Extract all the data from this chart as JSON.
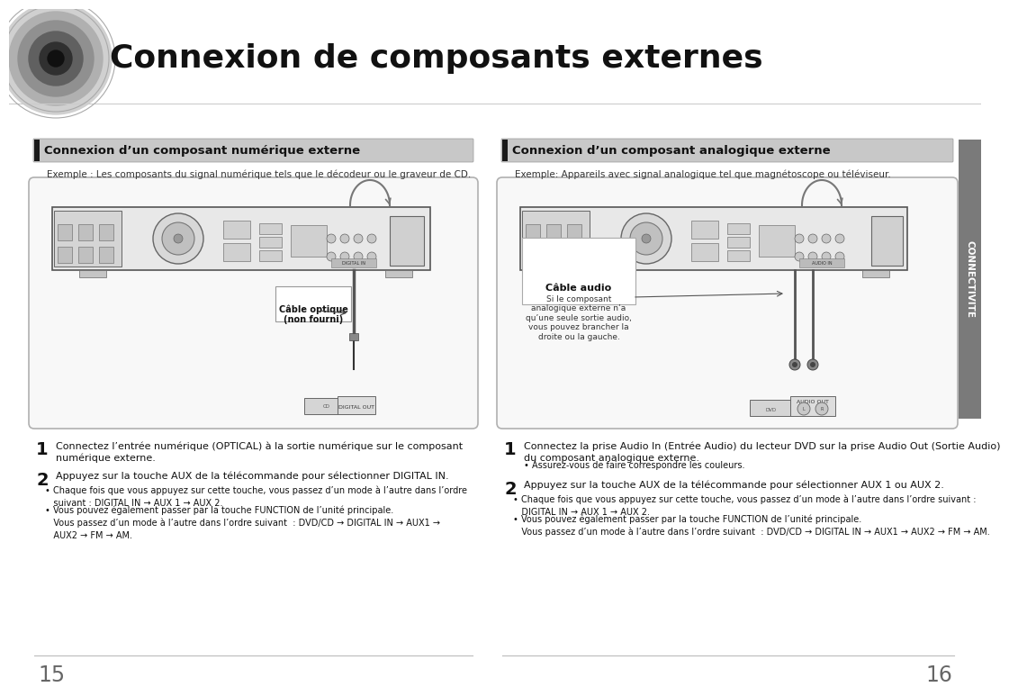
{
  "title": "Connexion de composants externes",
  "bg_color": "#ffffff",
  "page_left": "15",
  "page_right": "16",
  "sidebar_text": "CONNECTIVITE",
  "left_heading": "Connexion d’un composant numérique externe",
  "right_heading": "Connexion d’un composant analogique externe",
  "left_example": "Exemple : Les composants du signal numérique tels que le décodeur ou le graveur de CD.",
  "right_example": "Exemple: Appareils avec signal analogique tel que magnétoscope ou téléviseur.",
  "cable_label_left": "Câble optique\n(non fourni)",
  "cable_label_right": "Câble audio",
  "cable_note_right": "Si le composant\nanalogique externe n’a\nqu’une seule sortie audio,\nvous pouvez brancher la\ndroite ou la gauche.",
  "digital_out": "DIGITAL OUT",
  "audio_out": "AUDIO OUT",
  "left_step1": "Connectez l’entrée numérique (OPTICAL) à la sortie numérique sur le composant\nnumérique externe.",
  "left_step2_pre": "Appuyez sur la touche ",
  "left_step2_bold": "AUX",
  "left_step2_post": " de la télécommande pour sélectionner DIGITAL IN.",
  "left_b1": "• Chaque fois que vous appuyez sur cette touche, vous passez d’un mode à l’autre dans l’ordre\n   suivant : DIGITAL IN → AUX 1 → AUX 2.",
  "left_b2_pre": "• Vous pouvez également passer par la touche ",
  "left_b2_bold": "FUNCTION",
  "left_b2_post": " de l’unité principale.\n   Vous passez d’un mode à l’autre dans l’ordre suivant  : DVD/CD → DIGITAL IN → AUX1 →\n   AUX2 → FM → AM.",
  "right_step1_pre": "Connectez la prise Audio In (Entrée Audio) du lecteur DVD sur la prise Audio Out (Sortie Audio)\ndu composant analogique externe.",
  "right_step1_b": "• Assurez-vous de faire correspondre les couleurs.",
  "right_step2_pre": "Appuyez sur la touche ",
  "right_step2_bold": "AUX",
  "right_step2_post": " de la télécommande pour sélectionner AUX 1 ou AUX 2.",
  "right_b1": "• Chaque fois que vous appuyez sur cette touche, vous passez d’un mode à l’autre dans l’ordre suivant :\n   DIGITAL IN → AUX 1 → AUX 2.",
  "right_b2_pre": "• Vous pouvez également passer par la touche ",
  "right_b2_bold": "FUNCTION",
  "right_b2_post": " de l’unité principale.\n   Vous passez d’un mode à l’autre dans l’ordre suivant  : DVD/CD → DIGITAL IN → AUX1 → AUX2 → FM → AM."
}
